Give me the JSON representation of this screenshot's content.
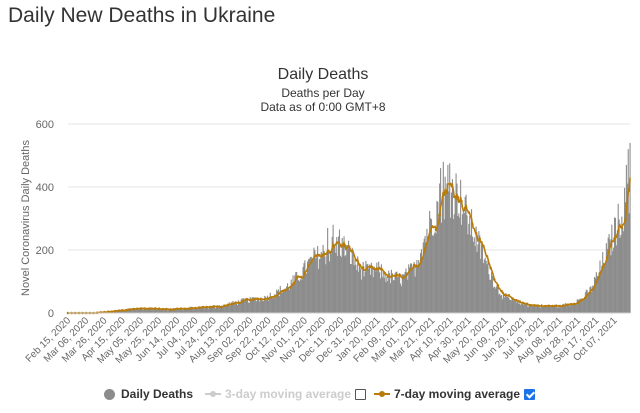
{
  "page": {
    "heading": "Daily New Deaths in Ukraine"
  },
  "chart_data": {
    "type": "bar",
    "title": "Daily Deaths",
    "subtitle_1": "Deaths per Day",
    "subtitle_2": "Data as of 0:00 GMT+8",
    "ylabel": "Novel Coronavirus Daily Deaths",
    "ylim": [
      0,
      600
    ],
    "yticks": [
      0,
      200,
      400,
      600
    ],
    "grid": true,
    "x_ticks": [
      "Feb 15, 2020",
      "Mar 06, 2020",
      "Mar 26, 2020",
      "Apr 15, 2020",
      "May 05, 2020",
      "May 25, 2020",
      "Jun 14, 2020",
      "Jul 04, 2020",
      "Jul 24, 2020",
      "Aug 13, 2020",
      "Sep 02, 2020",
      "Sep 22, 2020",
      "Oct 12, 2020",
      "Nov 01, 2020",
      "Nov 21, 2020",
      "Dec 11, 2020",
      "Dec 31, 2020",
      "Jan 20, 2021",
      "Feb 09, 2021",
      "Mar 01, 2021",
      "Mar 21, 2021",
      "Apr 10, 2021",
      "Apr 30, 2021",
      "May 20, 2021",
      "Jun 09, 2021",
      "Jun 29, 2021",
      "Jul 19, 2021",
      "Aug 08, 2021",
      "Aug 28, 2021",
      "Sep 17, 2021",
      "Oct 07, 2021"
    ],
    "x_range": [
      "Feb 15, 2020",
      "Oct 24, 2021"
    ],
    "series": [
      {
        "name": "Daily Deaths",
        "style": "bar",
        "color": "#8c8c8c",
        "anchors": [
          [
            "Feb 15, 2020",
            0
          ],
          [
            "Mar 16, 2020",
            0
          ],
          [
            "Apr 01, 2020",
            5
          ],
          [
            "Apr 20, 2020",
            12
          ],
          [
            "May 10, 2020",
            14
          ],
          [
            "Jun 01, 2020",
            12
          ],
          [
            "Jul 01, 2020",
            15
          ],
          [
            "Aug 01, 2020",
            22
          ],
          [
            "Aug 25, 2020",
            38
          ],
          [
            "Sep 20, 2020",
            50
          ],
          [
            "Oct 12, 2020",
            80
          ],
          [
            "Oct 25, 2020",
            115
          ],
          [
            "Nov 10, 2020",
            170
          ],
          [
            "Nov 21, 2020",
            190
          ],
          [
            "Dec 01, 2020",
            205
          ],
          [
            "Dec 11, 2020",
            215
          ],
          [
            "Dec 20, 2020",
            190
          ],
          [
            "Dec 31, 2020",
            140
          ],
          [
            "Jan 10, 2021",
            130
          ],
          [
            "Jan 20, 2021",
            135
          ],
          [
            "Feb 01, 2021",
            115
          ],
          [
            "Feb 15, 2021",
            108
          ],
          [
            "Mar 01, 2021",
            140
          ],
          [
            "Mar 10, 2021",
            220
          ],
          [
            "Mar 21, 2021",
            300
          ],
          [
            "Apr 01, 2021",
            370
          ],
          [
            "Apr 10, 2021",
            390
          ],
          [
            "Apr 18, 2021",
            380
          ],
          [
            "Apr 30, 2021",
            290
          ],
          [
            "May 05, 2021",
            260
          ],
          [
            "May 20, 2021",
            150
          ],
          [
            "Jun 01, 2021",
            75
          ],
          [
            "Jun 09, 2021",
            50
          ],
          [
            "Jun 20, 2021",
            35
          ],
          [
            "Jul 05, 2021",
            25
          ],
          [
            "Jul 19, 2021",
            22
          ],
          [
            "Aug 08, 2021",
            22
          ],
          [
            "Aug 20, 2021",
            30
          ],
          [
            "Sep 01, 2021",
            45
          ],
          [
            "Sep 10, 2021",
            70
          ],
          [
            "Sep 20, 2021",
            130
          ],
          [
            "Oct 01, 2021",
            210
          ],
          [
            "Oct 10, 2021",
            280
          ],
          [
            "Oct 17, 2021",
            330
          ],
          [
            "Oct 24, 2021",
            350
          ]
        ],
        "peaks": [
          [
            "Dec 02, 2020",
            280
          ],
          [
            "Nov 26, 2020",
            270
          ],
          [
            "Dec 09, 2020",
            265
          ],
          [
            "Apr 02, 2021",
            480
          ],
          [
            "Apr 07, 2021",
            470
          ],
          [
            "Apr 09, 2021",
            475
          ],
          [
            "Mar 30, 2021",
            460
          ],
          [
            "Oct 20, 2021",
            470
          ],
          [
            "Oct 24, 2021",
            540
          ],
          [
            "Oct 22, 2021",
            520
          ]
        ]
      },
      {
        "name": "3-day moving average",
        "style": "line",
        "color": "#c8c8c8",
        "visible": false
      },
      {
        "name": "7-day moving average",
        "style": "line",
        "color": "#b87c0a",
        "visible": true
      }
    ]
  },
  "legend": {
    "items": [
      {
        "label": "Daily Deaths",
        "icon": "circle-marker"
      },
      {
        "label": "3-day moving average",
        "icon": "line-dot-marker"
      },
      {
        "label": "7-day moving average",
        "icon": "line-dot-marker"
      }
    ],
    "checkbox_3day": false,
    "checkbox_7day": true
  }
}
